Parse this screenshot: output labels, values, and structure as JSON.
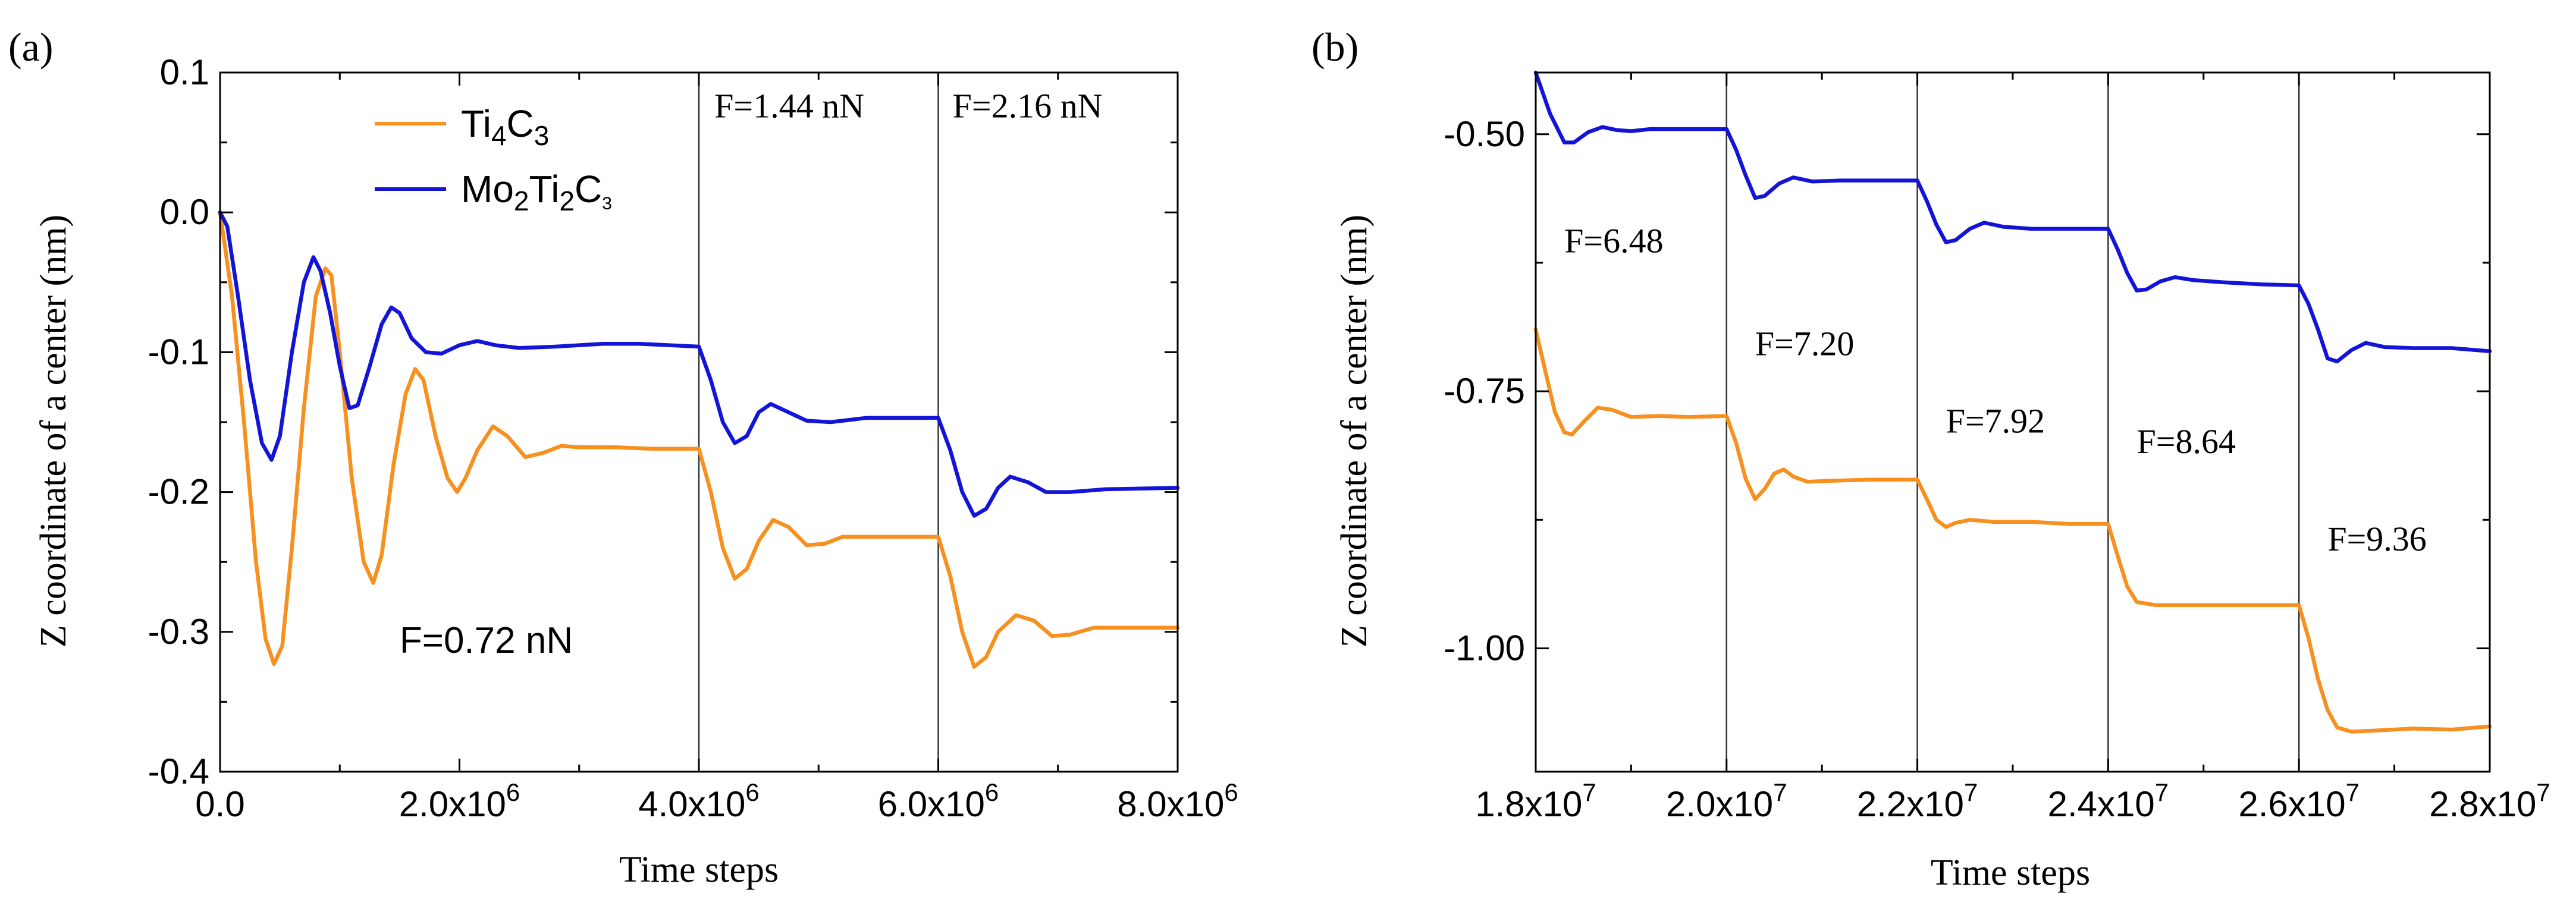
{
  "colors": {
    "ti4c3": "#F7901E",
    "mo2ti2c3": "#1414D9",
    "axis": "#000000",
    "vline": "#333333"
  },
  "chart_data": [
    {
      "panel": "(a)",
      "type": "line",
      "xlabel": "Time steps",
      "ylabel": "Z coordinate of a center (nm)",
      "xlim": [
        0,
        8000000
      ],
      "ylim": [
        -0.4,
        0.1
      ],
      "xticks": [
        0,
        2000000,
        4000000,
        6000000,
        8000000
      ],
      "xtick_labels": [
        {
          "base": "0.0",
          "exp": ""
        },
        {
          "base": "2.0x10",
          "exp": "6"
        },
        {
          "base": "4.0x10",
          "exp": "6"
        },
        {
          "base": "6.0x10",
          "exp": "6"
        },
        {
          "base": "8.0x10",
          "exp": "6"
        }
      ],
      "yticks": [
        0.1,
        0.0,
        -0.1,
        -0.2,
        -0.3,
        -0.4
      ],
      "ytick_labels": [
        "0.1",
        "0.0",
        "-0.1",
        "-0.2",
        "-0.3",
        "-0.4"
      ],
      "vlines": [
        4000000,
        6000000
      ],
      "legend": [
        {
          "key": "ti4c3",
          "parts": [
            [
              "Ti",
              ""
            ],
            [
              "4",
              "sub"
            ],
            [
              "C",
              ""
            ],
            [
              "3",
              "sub"
            ]
          ]
        },
        {
          "key": "mo2ti2c3",
          "parts": [
            [
              "Mo",
              ""
            ],
            [
              "2",
              "sub"
            ],
            [
              "Ti",
              ""
            ],
            [
              "2",
              "sub"
            ],
            [
              "C",
              ""
            ],
            [
              "3",
              "subs"
            ]
          ]
        }
      ],
      "force_labels": [
        {
          "text": "F=1.44 nN",
          "x": 4130000,
          "y": 0.068
        },
        {
          "text": "F=2.16 nN",
          "x": 6120000,
          "y": 0.068
        },
        {
          "text": "F=0.72 nN",
          "x": 1500000,
          "y": -0.315
        }
      ],
      "series": [
        {
          "name": "Ti4C3",
          "key": "ti4c3",
          "points": [
            [
              0,
              0
            ],
            [
              100000,
              -0.06
            ],
            [
              200000,
              -0.15
            ],
            [
              300000,
              -0.25
            ],
            [
              380000,
              -0.305
            ],
            [
              450000,
              -0.323
            ],
            [
              520000,
              -0.31
            ],
            [
              600000,
              -0.24
            ],
            [
              700000,
              -0.14
            ],
            [
              800000,
              -0.06
            ],
            [
              880000,
              -0.04
            ],
            [
              930000,
              -0.045
            ],
            [
              1000000,
              -0.1
            ],
            [
              1100000,
              -0.19
            ],
            [
              1200000,
              -0.25
            ],
            [
              1280000,
              -0.265
            ],
            [
              1350000,
              -0.245
            ],
            [
              1450000,
              -0.18
            ],
            [
              1550000,
              -0.13
            ],
            [
              1630000,
              -0.112
            ],
            [
              1700000,
              -0.12
            ],
            [
              1800000,
              -0.16
            ],
            [
              1900000,
              -0.19
            ],
            [
              1980000,
              -0.2
            ],
            [
              2050000,
              -0.19
            ],
            [
              2150000,
              -0.17
            ],
            [
              2280000,
              -0.153
            ],
            [
              2400000,
              -0.16
            ],
            [
              2550000,
              -0.175
            ],
            [
              2700000,
              -0.172
            ],
            [
              2850000,
              -0.167
            ],
            [
              3000000,
              -0.168
            ],
            [
              3300000,
              -0.168
            ],
            [
              3600000,
              -0.169
            ],
            [
              4000000,
              -0.169
            ],
            [
              4100000,
              -0.2
            ],
            [
              4200000,
              -0.24
            ],
            [
              4300000,
              -0.262
            ],
            [
              4400000,
              -0.255
            ],
            [
              4500000,
              -0.235
            ],
            [
              4620000,
              -0.22
            ],
            [
              4750000,
              -0.225
            ],
            [
              4900000,
              -0.238
            ],
            [
              5050000,
              -0.237
            ],
            [
              5200000,
              -0.232
            ],
            [
              5500000,
              -0.232
            ],
            [
              6000000,
              -0.232
            ],
            [
              6100000,
              -0.26
            ],
            [
              6200000,
              -0.3
            ],
            [
              6300000,
              -0.325
            ],
            [
              6400000,
              -0.318
            ],
            [
              6500000,
              -0.3
            ],
            [
              6650000,
              -0.288
            ],
            [
              6800000,
              -0.292
            ],
            [
              6950000,
              -0.303
            ],
            [
              7100000,
              -0.302
            ],
            [
              7300000,
              -0.297
            ],
            [
              7600000,
              -0.297
            ],
            [
              8000000,
              -0.297
            ]
          ]
        },
        {
          "name": "Mo2Ti2C3",
          "key": "mo2ti2c3",
          "points": [
            [
              0,
              0
            ],
            [
              60000,
              -0.01
            ],
            [
              150000,
              -0.06
            ],
            [
              250000,
              -0.12
            ],
            [
              350000,
              -0.165
            ],
            [
              430000,
              -0.177
            ],
            [
              500000,
              -0.16
            ],
            [
              600000,
              -0.1
            ],
            [
              700000,
              -0.05
            ],
            [
              780000,
              -0.032
            ],
            [
              840000,
              -0.042
            ],
            [
              920000,
              -0.072
            ],
            [
              1000000,
              -0.11
            ],
            [
              1080000,
              -0.14
            ],
            [
              1150000,
              -0.138
            ],
            [
              1250000,
              -0.11
            ],
            [
              1350000,
              -0.08
            ],
            [
              1430000,
              -0.068
            ],
            [
              1500000,
              -0.072
            ],
            [
              1600000,
              -0.09
            ],
            [
              1720000,
              -0.1
            ],
            [
              1850000,
              -0.101
            ],
            [
              2000000,
              -0.095
            ],
            [
              2150000,
              -0.092
            ],
            [
              2300000,
              -0.095
            ],
            [
              2500000,
              -0.097
            ],
            [
              2800000,
              -0.096
            ],
            [
              3200000,
              -0.094
            ],
            [
              3500000,
              -0.094
            ],
            [
              4000000,
              -0.096
            ],
            [
              4100000,
              -0.12
            ],
            [
              4200000,
              -0.15
            ],
            [
              4300000,
              -0.165
            ],
            [
              4400000,
              -0.16
            ],
            [
              4500000,
              -0.143
            ],
            [
              4600000,
              -0.137
            ],
            [
              4750000,
              -0.143
            ],
            [
              4900000,
              -0.149
            ],
            [
              5100000,
              -0.15
            ],
            [
              5400000,
              -0.147
            ],
            [
              6000000,
              -0.147
            ],
            [
              6100000,
              -0.17
            ],
            [
              6200000,
              -0.2
            ],
            [
              6300000,
              -0.217
            ],
            [
              6400000,
              -0.212
            ],
            [
              6500000,
              -0.197
            ],
            [
              6600000,
              -0.189
            ],
            [
              6750000,
              -0.193
            ],
            [
              6900000,
              -0.2
            ],
            [
              7100000,
              -0.2
            ],
            [
              7400000,
              -0.198
            ],
            [
              8000000,
              -0.197
            ]
          ]
        }
      ]
    },
    {
      "panel": "(b)",
      "type": "line",
      "xlabel": "Time steps",
      "ylabel": "Z coordinate of a center (nm)",
      "xlim": [
        18000000,
        28000000
      ],
      "ylim": [
        -1.12,
        -0.44
      ],
      "xticks": [
        18000000,
        20000000,
        22000000,
        24000000,
        26000000,
        28000000
      ],
      "xtick_labels": [
        {
          "base": "1.8x10",
          "exp": "7"
        },
        {
          "base": "2.0x10",
          "exp": "7"
        },
        {
          "base": "2.2x10",
          "exp": "7"
        },
        {
          "base": "2.4x10",
          "exp": "7"
        },
        {
          "base": "2.6x10",
          "exp": "7"
        },
        {
          "base": "2.8x10",
          "exp": "7"
        }
      ],
      "yticks": [
        -0.5,
        -0.75,
        -1.0
      ],
      "ytick_labels": [
        "-0.50",
        "-0.75",
        "-1.00"
      ],
      "minor_yticks": [
        -0.625,
        -0.875,
        -1.125
      ],
      "vlines": [
        20000000,
        22000000,
        24000000,
        26000000
      ],
      "force_labels": [
        {
          "text": "F=6.48",
          "x": 18300000,
          "y": -0.615
        },
        {
          "text": "F=7.20",
          "x": 20300000,
          "y": -0.715
        },
        {
          "text": "F=7.92",
          "x": 22300000,
          "y": -0.79
        },
        {
          "text": "F=8.64",
          "x": 24300000,
          "y": -0.81
        },
        {
          "text": "F=9.36",
          "x": 26300000,
          "y": -0.905
        }
      ],
      "series": [
        {
          "name": "Mo2Ti2C3",
          "key": "mo2ti2c3",
          "points": [
            [
              18000000,
              -0.44
            ],
            [
              18150000,
              -0.48
            ],
            [
              18300000,
              -0.508
            ],
            [
              18400000,
              -0.508
            ],
            [
              18550000,
              -0.498
            ],
            [
              18700000,
              -0.493
            ],
            [
              18850000,
              -0.496
            ],
            [
              19000000,
              -0.497
            ],
            [
              19200000,
              -0.495
            ],
            [
              19500000,
              -0.495
            ],
            [
              20000000,
              -0.495
            ],
            [
              20100000,
              -0.515
            ],
            [
              20200000,
              -0.54
            ],
            [
              20300000,
              -0.562
            ],
            [
              20400000,
              -0.56
            ],
            [
              20550000,
              -0.548
            ],
            [
              20700000,
              -0.542
            ],
            [
              20900000,
              -0.546
            ],
            [
              21200000,
              -0.545
            ],
            [
              21600000,
              -0.545
            ],
            [
              22000000,
              -0.545
            ],
            [
              22100000,
              -0.565
            ],
            [
              22200000,
              -0.588
            ],
            [
              22300000,
              -0.605
            ],
            [
              22400000,
              -0.603
            ],
            [
              22550000,
              -0.592
            ],
            [
              22700000,
              -0.586
            ],
            [
              22900000,
              -0.59
            ],
            [
              23200000,
              -0.592
            ],
            [
              23600000,
              -0.592
            ],
            [
              24000000,
              -0.592
            ],
            [
              24100000,
              -0.612
            ],
            [
              24200000,
              -0.635
            ],
            [
              24300000,
              -0.652
            ],
            [
              24400000,
              -0.651
            ],
            [
              24550000,
              -0.643
            ],
            [
              24700000,
              -0.639
            ],
            [
              24900000,
              -0.642
            ],
            [
              25200000,
              -0.644
            ],
            [
              25600000,
              -0.646
            ],
            [
              26000000,
              -0.647
            ],
            [
              26100000,
              -0.665
            ],
            [
              26200000,
              -0.69
            ],
            [
              26300000,
              -0.718
            ],
            [
              26400000,
              -0.721
            ],
            [
              26550000,
              -0.71
            ],
            [
              26700000,
              -0.703
            ],
            [
              26900000,
              -0.707
            ],
            [
              27200000,
              -0.708
            ],
            [
              27600000,
              -0.708
            ],
            [
              28000000,
              -0.711
            ]
          ]
        },
        {
          "name": "Ti4C3",
          "key": "ti4c3",
          "points": [
            [
              18000000,
              -0.69
            ],
            [
              18100000,
              -0.73
            ],
            [
              18200000,
              -0.77
            ],
            [
              18300000,
              -0.79
            ],
            [
              18380000,
              -0.792
            ],
            [
              18500000,
              -0.78
            ],
            [
              18650000,
              -0.766
            ],
            [
              18800000,
              -0.768
            ],
            [
              19000000,
              -0.775
            ],
            [
              19300000,
              -0.774
            ],
            [
              19600000,
              -0.775
            ],
            [
              20000000,
              -0.774
            ],
            [
              20100000,
              -0.8
            ],
            [
              20200000,
              -0.835
            ],
            [
              20300000,
              -0.855
            ],
            [
              20400000,
              -0.845
            ],
            [
              20500000,
              -0.83
            ],
            [
              20600000,
              -0.826
            ],
            [
              20700000,
              -0.833
            ],
            [
              20850000,
              -0.838
            ],
            [
              21100000,
              -0.837
            ],
            [
              21500000,
              -0.836
            ],
            [
              22000000,
              -0.836
            ],
            [
              22100000,
              -0.855
            ],
            [
              22200000,
              -0.875
            ],
            [
              22300000,
              -0.882
            ],
            [
              22400000,
              -0.878
            ],
            [
              22550000,
              -0.875
            ],
            [
              22800000,
              -0.877
            ],
            [
              23200000,
              -0.877
            ],
            [
              23600000,
              -0.879
            ],
            [
              24000000,
              -0.879
            ],
            [
              24100000,
              -0.91
            ],
            [
              24200000,
              -0.94
            ],
            [
              24300000,
              -0.955
            ],
            [
              24500000,
              -0.958
            ],
            [
              24800000,
              -0.958
            ],
            [
              25200000,
              -0.958
            ],
            [
              25600000,
              -0.958
            ],
            [
              26000000,
              -0.958
            ],
            [
              26100000,
              -0.99
            ],
            [
              26200000,
              -1.03
            ],
            [
              26300000,
              -1.06
            ],
            [
              26400000,
              -1.077
            ],
            [
              26550000,
              -1.081
            ],
            [
              26800000,
              -1.08
            ],
            [
              27200000,
              -1.078
            ],
            [
              27600000,
              -1.079
            ],
            [
              28000000,
              -1.076
            ]
          ]
        }
      ]
    }
  ]
}
